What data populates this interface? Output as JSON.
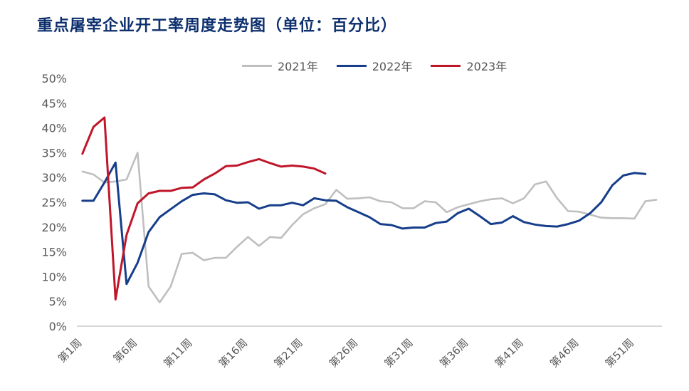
{
  "title": "重点屠宰企业开工率周度走势图（单位：百分比）",
  "colors": {
    "2021": "#bfbfbf",
    "2022": "#163e8a",
    "2023": "#c0162a",
    "title": "#0d2f6e"
  },
  "chart_data": {
    "type": "line",
    "title": "重点屠宰企业开工率周度走势图（单位：百分比）",
    "xlabel": "",
    "ylabel": "",
    "ylim": [
      0,
      50
    ],
    "y_ticks": [
      "0%",
      "5%",
      "10%",
      "15%",
      "20%",
      "25%",
      "30%",
      "35%",
      "40%",
      "45%",
      "50%"
    ],
    "x_ticks": [
      {
        "week": 1,
        "label": "第1周"
      },
      {
        "week": 6,
        "label": "第6周"
      },
      {
        "week": 11,
        "label": "第11周"
      },
      {
        "week": 16,
        "label": "第16周"
      },
      {
        "week": 21,
        "label": "第21周"
      },
      {
        "week": 26,
        "label": "第26周"
      },
      {
        "week": 31,
        "label": "第31周"
      },
      {
        "week": 36,
        "label": "第36周"
      },
      {
        "week": 41,
        "label": "第41周"
      },
      {
        "week": 46,
        "label": "第46周"
      },
      {
        "week": 51,
        "label": "第51周"
      }
    ],
    "x_range": [
      1,
      53
    ],
    "grid": false,
    "legend_position": "top",
    "series": [
      {
        "name": "2021年",
        "color": "#bfbfbf",
        "values": [
          31.2,
          30.6,
          29,
          29.2,
          29.6,
          35,
          8,
          4.8,
          8,
          14.6,
          14.8,
          13.3,
          13.8,
          13.8,
          16,
          18,
          16.2,
          18,
          17.8,
          20.4,
          22.6,
          23.8,
          24.6,
          27.5,
          25.7,
          25.8,
          26,
          25.2,
          25,
          23.8,
          23.8,
          25.2,
          25,
          23,
          24,
          24.6,
          25.2,
          25.6,
          25.8,
          24.8,
          25.8,
          28.6,
          29.2,
          25.8,
          23.2,
          23.1,
          22.5,
          21.9,
          21.8,
          21.8,
          21.7,
          25.2,
          25.5
        ]
      },
      {
        "name": "2022年",
        "color": "#163e8a",
        "values": [
          25.3,
          25.3,
          29,
          33,
          8.5,
          12.8,
          19,
          22,
          23.6,
          25.2,
          26.5,
          26.8,
          26.6,
          25.4,
          24.9,
          25,
          23.7,
          24.4,
          24.4,
          24.9,
          24.4,
          25.8,
          25.4,
          25.3,
          24,
          23,
          22,
          20.6,
          20.4,
          19.7,
          19.9,
          19.9,
          20.8,
          21.1,
          22.8,
          23.7,
          22.2,
          20.6,
          20.9,
          22.2,
          21,
          20.5,
          20.2,
          20.1,
          20.6,
          21.3,
          22.8,
          25,
          28.4,
          30.4,
          30.9,
          30.7
        ]
      },
      {
        "name": "2023年",
        "color": "#c0162a",
        "values": [
          34.8,
          40.2,
          42.1,
          5.4,
          18.4,
          24.8,
          26.8,
          27.3,
          27.3,
          27.9,
          28,
          29.6,
          30.8,
          32.3,
          32.4,
          33.1,
          33.7,
          32.9,
          32.2,
          32.4,
          32.2,
          31.8,
          30.8
        ]
      }
    ]
  }
}
